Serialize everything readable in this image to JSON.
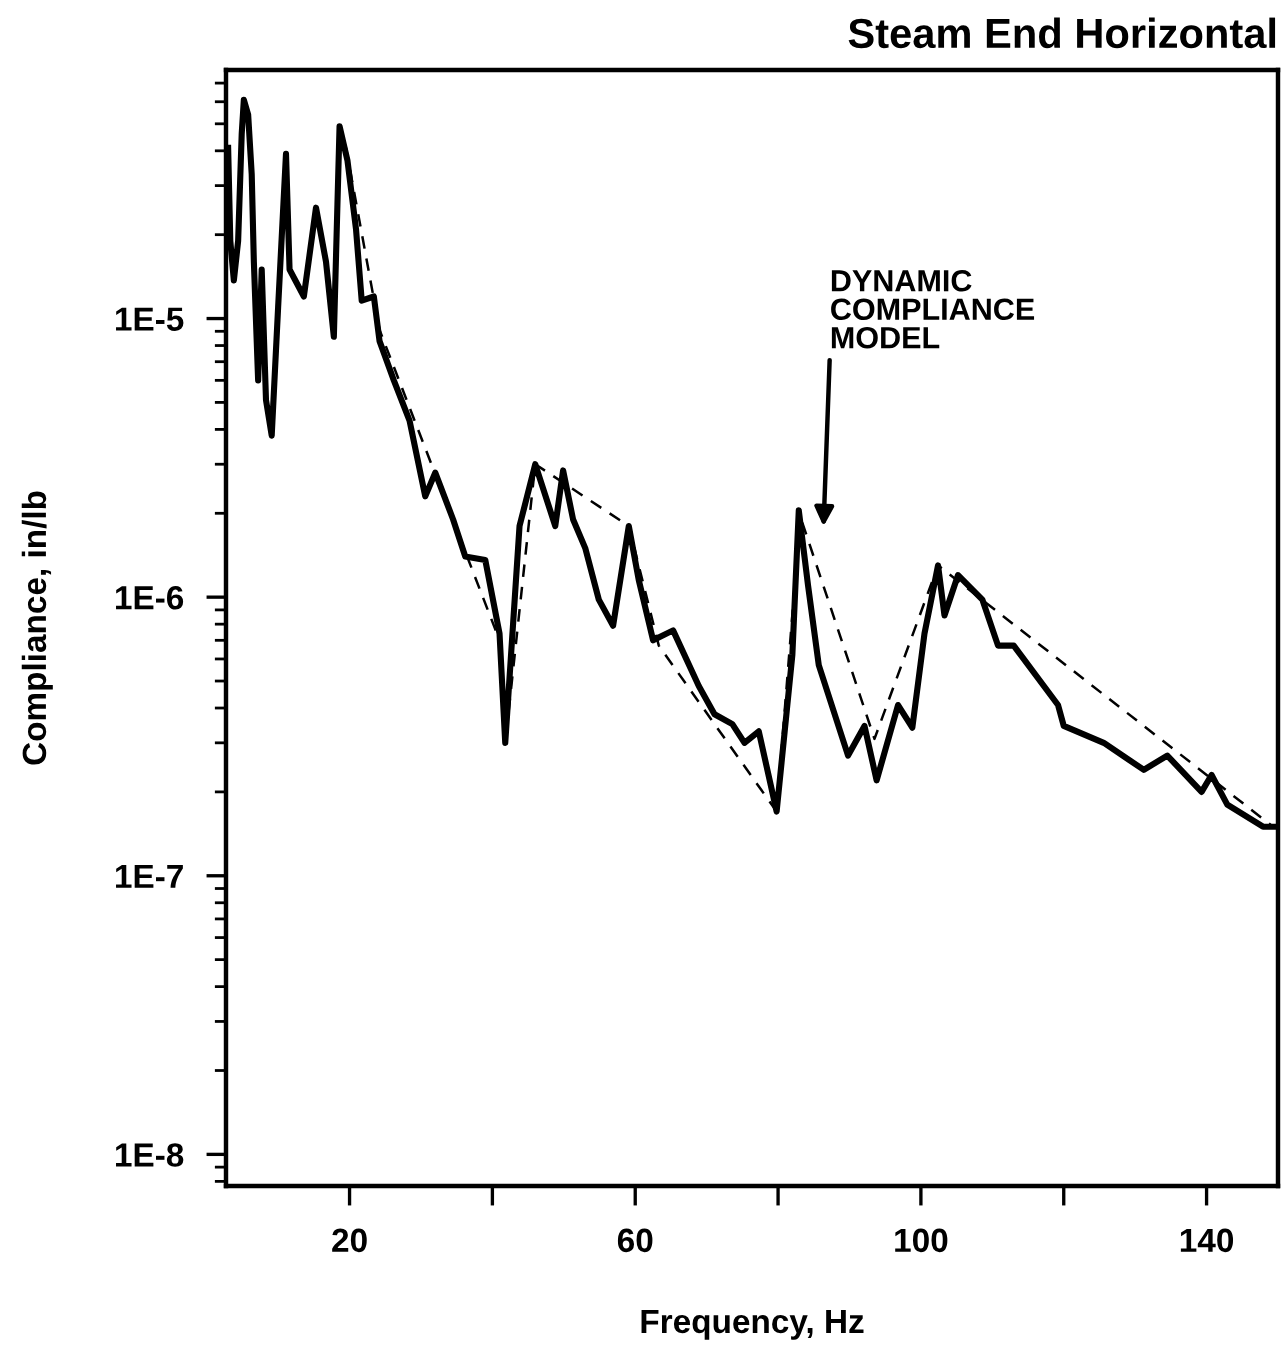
{
  "chart_data": {
    "type": "line",
    "title": "Steam End Horizontal",
    "xlabel": "Frequency, Hz",
    "ylabel": "Compliance, in/lb",
    "log": "y",
    "grid": false,
    "marker": "none",
    "xlim": [
      2.7,
      150
    ],
    "xticks": [
      20,
      {
        "value": 40,
        "label": null
      },
      60,
      {
        "value": 80,
        "label": null
      },
      100,
      {
        "value": 120,
        "label": null
      },
      140
    ],
    "ylim": [
      7.7e-09,
      7.8e-05
    ],
    "yticks": [
      {
        "value": 1e-08,
        "label": "1E-8"
      },
      {
        "value": 1e-07,
        "label": "1E-7"
      },
      {
        "value": 1e-06,
        "label": "1E-6"
      },
      {
        "value": 1e-05,
        "label": "1E-5"
      }
    ],
    "annotations": [
      "DYNAMIC\nCOMPLIANCE\nMODEL"
    ],
    "series": [
      {
        "color": "#000000",
        "line_style": "solid",
        "x": [
          3.0,
          3.3,
          3.8,
          4.4,
          4.9,
          5.2,
          5.8,
          6.3,
          6.6,
          7.2,
          7.7,
          8.3,
          9.1,
          10.0,
          11.1,
          11.6,
          13.6,
          15.3,
          16.7,
          17.8,
          18.6,
          19.7,
          20.9,
          21.7,
          23.4,
          24.2,
          26.2,
          28.4,
          30.6,
          32.0,
          34.5,
          36.2,
          39.0,
          41.0,
          41.8,
          43.8,
          46.0,
          48.8,
          49.9,
          51.3,
          53.0,
          54.9,
          56.9,
          59.1,
          60.5,
          62.5,
          65.3,
          68.9,
          71.1,
          73.6,
          75.3,
          77.3,
          79.8,
          82.0,
          82.9,
          84.2,
          85.7,
          89.8,
          92.1,
          93.8,
          96.8,
          98.8,
          100.5,
          102.4,
          103.3,
          105.2,
          108.6,
          110.8,
          113.0,
          119.2,
          120.0,
          125.6,
          131.2,
          134.5,
          139.3,
          140.7,
          142.9,
          147.9,
          149.3
        ],
        "values": [
          4.1e-05,
          1.9e-05,
          1.37e-05,
          1.9e-05,
          4.6e-05,
          6.1e-05,
          5.4e-05,
          3.3e-05,
          1.6e-05,
          6e-06,
          1.5e-05,
          5.1e-06,
          3.8e-06,
          1.1e-05,
          3.9e-05,
          1.5e-05,
          1.2e-05,
          2.5e-05,
          1.6e-05,
          8.6e-06,
          4.9e-05,
          3.7e-05,
          2.1e-05,
          1.16e-05,
          1.2e-05,
          8.3e-06,
          6e-06,
          4.3e-06,
          2.3e-06,
          2.8e-06,
          1.9e-06,
          1.4e-06,
          1.36e-06,
          7.4e-07,
          3e-07,
          1.8e-06,
          3e-06,
          1.8e-06,
          2.85e-06,
          1.9e-06,
          1.5e-06,
          9.8e-07,
          7.9e-07,
          1.8e-06,
          1.15e-06,
          7e-07,
          7.6e-07,
          4.8e-07,
          3.8e-07,
          3.5e-07,
          3e-07,
          3.3e-07,
          1.7e-07,
          6.2e-07,
          2.05e-06,
          1.1e-06,
          5.7e-07,
          2.7e-07,
          3.45e-07,
          2.2e-07,
          4.1e-07,
          3.4e-07,
          7.4e-07,
          1.3e-06,
          8.6e-07,
          1.2e-06,
          9.8e-07,
          6.7e-07,
          6.7e-07,
          4.1e-07,
          3.45e-07,
          3e-07,
          2.4e-07,
          2.7e-07,
          2e-07,
          2.3e-07,
          1.8e-07,
          1.5e-07,
          1.5e-07
        ]
      },
      {
        "color": "#000000",
        "line_style": "dashed",
        "x": [
          19.5,
          24.2,
          41.0,
          41.8,
          46.0,
          59.1,
          63.3,
          79.8,
          83.1,
          93.5,
          102.4,
          149.3
        ],
        "values": [
          4.1e-05,
          9.1e-06,
          7e-07,
          3e-07,
          3e-06,
          1.8e-06,
          6.7e-07,
          1.7e-07,
          1.95e-06,
          3.1e-07,
          1.3e-06,
          1.5e-07
        ]
      }
    ]
  }
}
